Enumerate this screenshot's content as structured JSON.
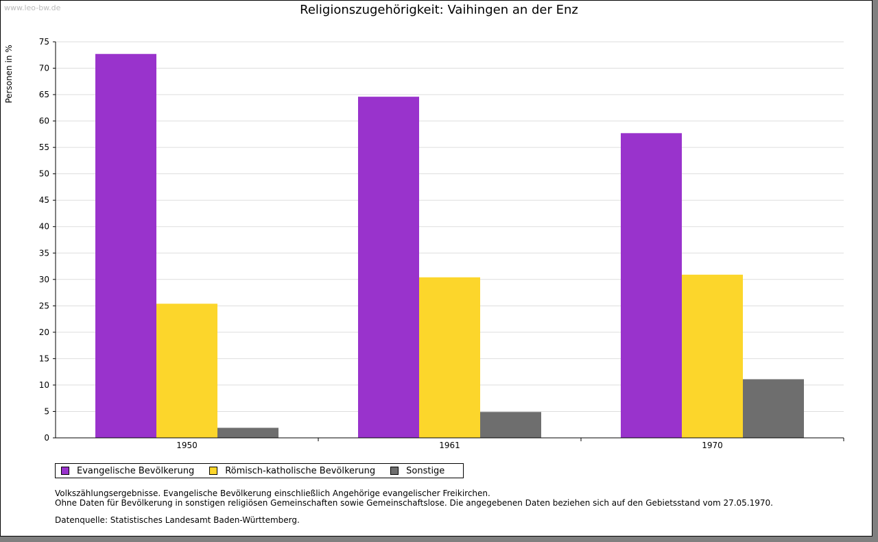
{
  "watermark": "www.leo-bw.de",
  "chart_data": {
    "type": "bar",
    "title": "Religionszugehörigkeit: Vaihingen an der Enz",
    "xlabel": "",
    "ylabel": "Personen in %",
    "ylim": [
      0,
      75
    ],
    "yticks": [
      0,
      5,
      10,
      15,
      20,
      25,
      30,
      35,
      40,
      45,
      50,
      55,
      60,
      65,
      70,
      75
    ],
    "grid": true,
    "legend_position": "bottom",
    "categories": [
      "1950",
      "1961",
      "1970"
    ],
    "series": [
      {
        "name": "Evangelische Bevölkerung",
        "color": "#9933cc",
        "values": [
          72.7,
          64.6,
          57.7
        ]
      },
      {
        "name": "Römisch-katholische Bevölkerung",
        "color": "#fcd62b",
        "values": [
          25.4,
          30.4,
          30.9
        ]
      },
      {
        "name": "Sonstige",
        "color": "#6e6e6e",
        "values": [
          1.9,
          4.9,
          11.1
        ]
      }
    ]
  },
  "notes": {
    "line1": "Volkszählungsergebnisse. Evangelische Bevölkerung einschließlich Angehörige evangelischer Freikirchen.",
    "line2": "Ohne Daten für Bevölkerung in sonstigen religiösen Gemeinschaften sowie Gemeinschaftslose. Die angegebenen Daten beziehen sich auf den Gebietsstand vom 27.05.1970.",
    "source": "Datenquelle: Statistisches Landesamt Baden-Württemberg."
  }
}
